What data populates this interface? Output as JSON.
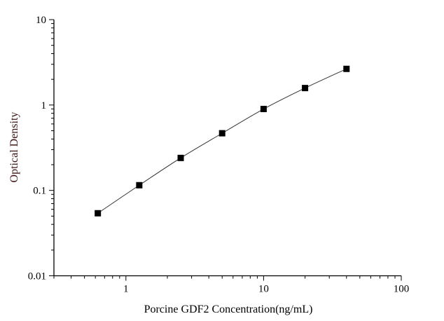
{
  "chart_data": {
    "type": "scatter",
    "title": "",
    "xlabel": "Porcine GDF2 Concentration(ng/mL)",
    "ylabel": "Optical Density",
    "xscale": "log",
    "yscale": "log",
    "xlim": [
      0.3,
      100
    ],
    "ylim": [
      0.01,
      10
    ],
    "xticks": [
      "1",
      "10",
      "100"
    ],
    "yticks": [
      "0.01",
      "0.1",
      "1",
      "10"
    ],
    "grid": false,
    "legend": "none",
    "series": [
      {
        "x": [
          0.625,
          1.25,
          2.5,
          5,
          10,
          20,
          40
        ],
        "y": [
          0.054,
          0.115,
          0.24,
          0.467,
          0.898,
          1.58,
          2.65
        ],
        "marker": "square",
        "line": "smooth curve"
      }
    ],
    "colors": {
      "marker": "#000000",
      "line": "#333333",
      "ylabel": "#3a1414",
      "axis": "#000000"
    }
  }
}
